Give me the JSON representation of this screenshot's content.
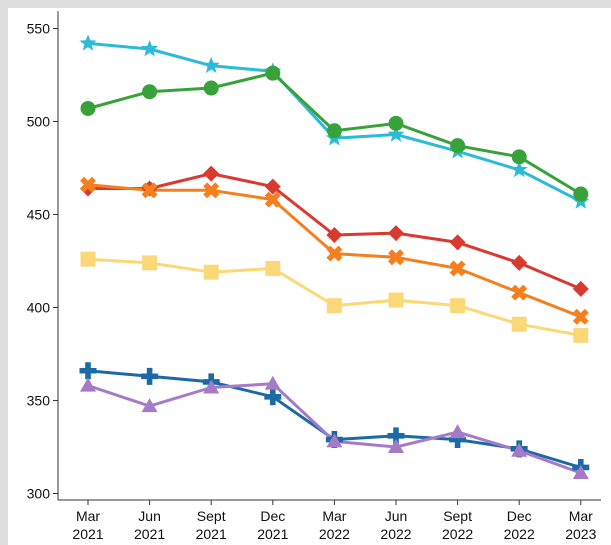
{
  "chart_data": {
    "type": "line",
    "title": "",
    "xlabel": "",
    "ylabel": "",
    "ylim": [
      296,
      560
    ],
    "yticks": [
      300,
      350,
      400,
      450,
      500,
      550
    ],
    "grid": false,
    "categories": [
      [
        "Mar",
        "2021"
      ],
      [
        "Jun",
        "2021"
      ],
      [
        "Sept",
        "2021"
      ],
      [
        "Dec",
        "2021"
      ],
      [
        "Mar",
        "2022"
      ],
      [
        "Jun",
        "2022"
      ],
      [
        "Sept",
        "2022"
      ],
      [
        "Dec",
        "2022"
      ],
      [
        "Mar",
        "2023"
      ]
    ],
    "series": [
      {
        "color": "#2bbbd8",
        "marker": "star",
        "values": [
          542,
          539,
          530,
          527,
          491,
          493,
          484,
          474,
          457
        ]
      },
      {
        "color": "#37a23a",
        "marker": "circle",
        "values": [
          507,
          516,
          518,
          526,
          495,
          499,
          487,
          481,
          461
        ]
      },
      {
        "color": "#d83a2f",
        "marker": "diamond",
        "values": [
          464,
          464,
          472,
          465,
          439,
          440,
          435,
          424,
          410
        ]
      },
      {
        "color": "#f57f1e",
        "marker": "x",
        "values": [
          466,
          463,
          463,
          458,
          429,
          427,
          421,
          408,
          395
        ]
      },
      {
        "color": "#fbd877",
        "marker": "square",
        "values": [
          426,
          424,
          419,
          421,
          401,
          404,
          401,
          391,
          385
        ]
      },
      {
        "color": "#1b6aa5",
        "marker": "plus",
        "values": [
          366,
          363,
          360,
          352,
          329,
          331,
          329,
          324,
          314
        ]
      },
      {
        "color": "#a57ac8",
        "marker": "triangle",
        "values": [
          358,
          347,
          357,
          359,
          328,
          325,
          333,
          323,
          311
        ]
      }
    ]
  }
}
